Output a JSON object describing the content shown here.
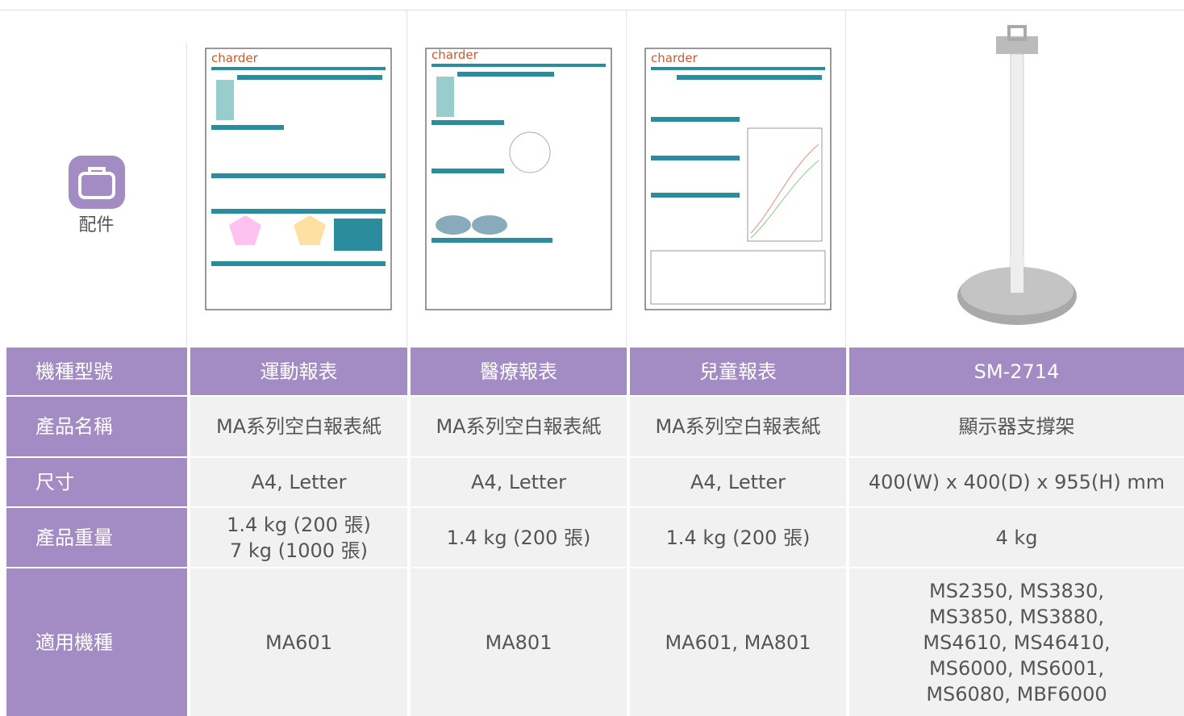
{
  "accessory_label": "配件",
  "table": {
    "header": [
      "機種型號",
      "運動報表",
      "醫療報表",
      "兒童報表",
      "SM-2714"
    ],
    "rows": [
      [
        "產品名稱",
        [
          "MA系列空白報表紙"
        ],
        [
          "MA系列空白報表紙"
        ],
        [
          "MA系列空白報表紙"
        ],
        [
          "顯示器支撐架"
        ]
      ],
      [
        "尺寸",
        [
          "A4, Letter"
        ],
        [
          "A4, Letter"
        ],
        [
          "A4, Letter"
        ],
        [
          "400(W) x 400(D) x 955(H) mm"
        ]
      ],
      [
        "產品重量",
        [
          "1.4 kg (200 張)",
          "7 kg (1000 張)"
        ],
        [
          "1.4 kg (200 張)"
        ],
        [
          "1.4 kg (200 張)"
        ],
        [
          "4 kg"
        ]
      ],
      [
        "適用機種",
        [
          "MA601"
        ],
        [
          "MA801"
        ],
        [
          "MA601, MA801"
        ],
        [
          "MS2350, MS3830,",
          "MS3850, MS3880,",
          "MS4610, MS46410,",
          "MS6000, MS6001,",
          "MS6080, MBF6000"
        ]
      ]
    ]
  }
}
